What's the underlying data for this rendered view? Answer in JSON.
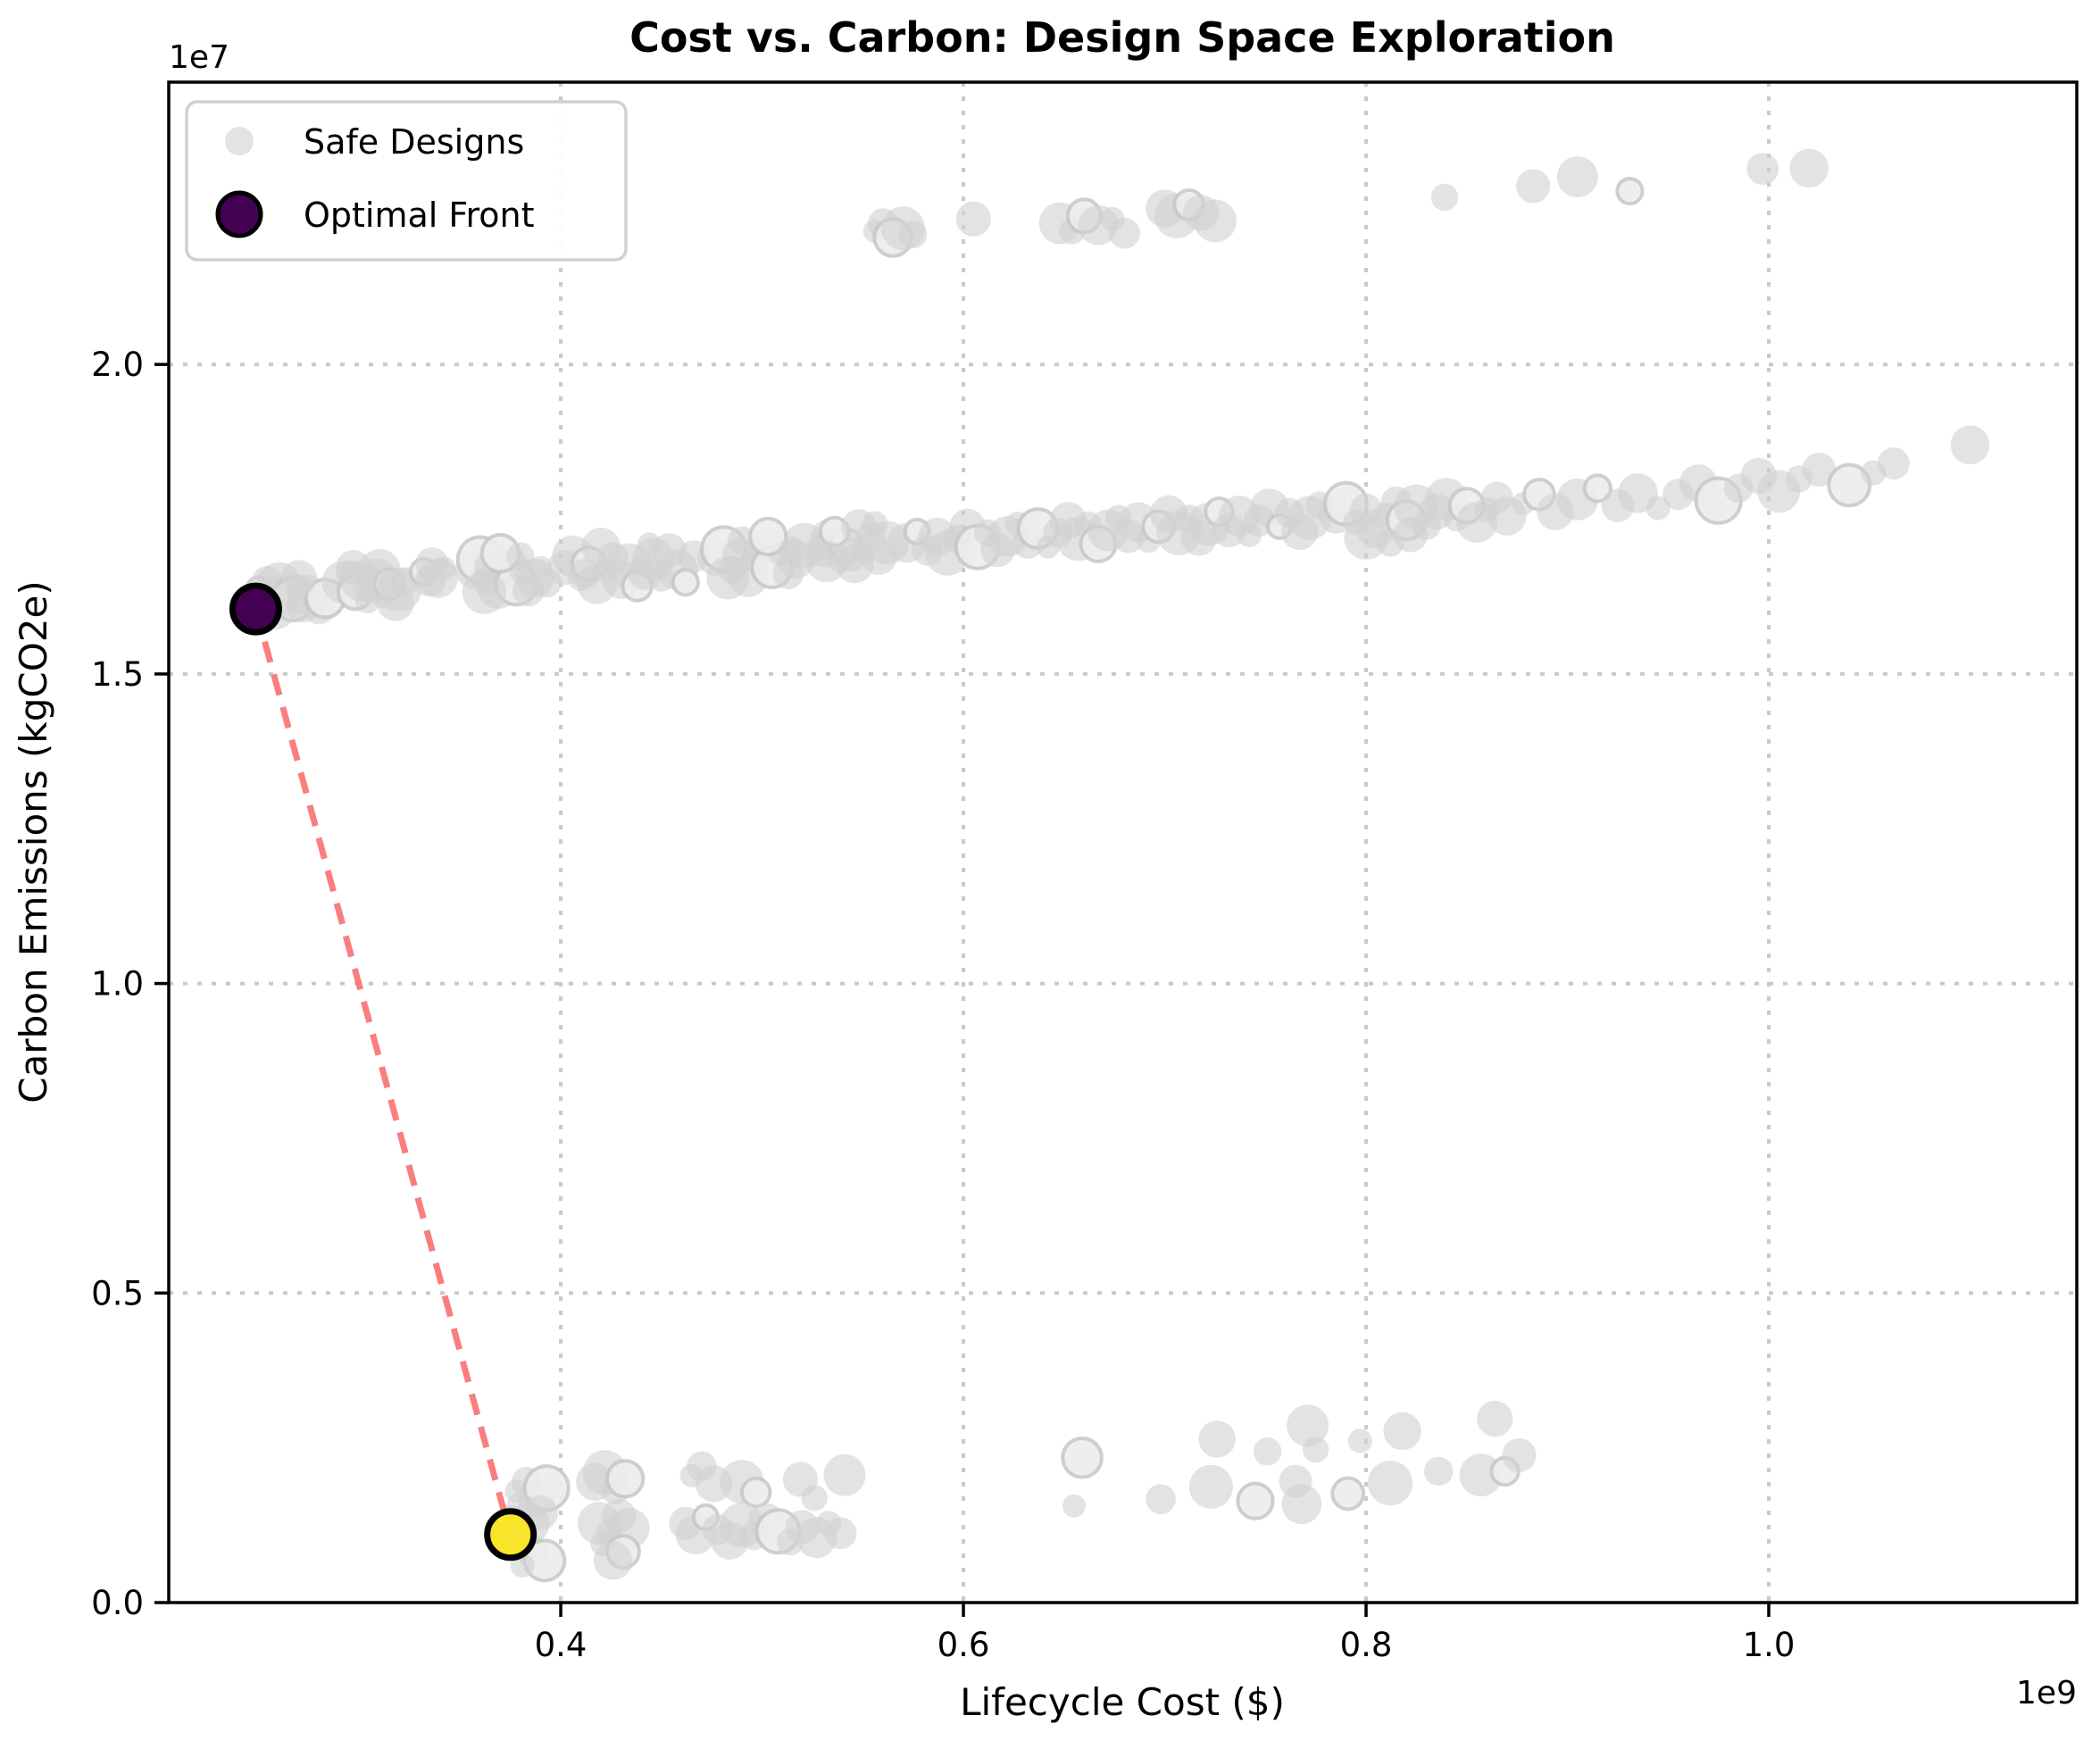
{
  "chart_data": {
    "type": "scatter",
    "title": "Cost vs. Carbon: Design Space Exploration",
    "xlabel": "Lifecycle Cost ($)",
    "ylabel": "Carbon Emissions (kgCO2e)",
    "x_offset_text": "1e9",
    "y_offset_text": "1e7",
    "x_units": "1e9 dollars",
    "y_units": "1e7 kgCO2e",
    "xlim": [
      0.2053,
      1.153
    ],
    "ylim": [
      0,
      2.456
    ],
    "x_ticks": [
      0.4,
      0.6,
      0.8,
      1.0
    ],
    "y_ticks": [
      0.0,
      0.5,
      1.0,
      1.5,
      2.0
    ],
    "grid": true,
    "grid_style": "dotted",
    "colors": {
      "safe": "#d2d2d2",
      "safe_ring": "#ececec",
      "optimal_low": "#440154",
      "optimal_high": "#f8e52b",
      "connector": "#fa7070",
      "grid": "#c9c9c9",
      "spine": "#000000"
    },
    "legend": {
      "position": "upper left",
      "entries": [
        {
          "label": "Safe Designs",
          "color": "#d9d9d9"
        },
        {
          "label": "Optimal Front",
          "color": "#440154"
        }
      ]
    },
    "series": [
      {
        "name": "Safe Designs",
        "points": [
          [
            0.25,
            1.638
          ],
          [
            0.254,
            1.65
          ],
          [
            0.257,
            1.628
          ],
          [
            0.26,
            1.645
          ],
          [
            0.262,
            1.615
          ],
          [
            0.264,
            1.632
          ],
          [
            0.267,
            1.62
          ],
          [
            0.27,
            1.64
          ],
          [
            0.272,
            1.61
          ],
          [
            0.274,
            1.628
          ],
          [
            0.277,
            1.618
          ],
          [
            0.28,
            1.605
          ],
          [
            0.283,
            1.622
          ],
          [
            0.258,
            1.608
          ],
          [
            0.252,
            1.618
          ],
          [
            0.27,
            1.655
          ],
          [
            0.292,
            1.648
          ],
          [
            0.295,
            1.662
          ],
          [
            0.298,
            1.632
          ],
          [
            0.301,
            1.65
          ],
          [
            0.304,
            1.618
          ],
          [
            0.306,
            1.64
          ],
          [
            0.309,
            1.655
          ],
          [
            0.312,
            1.625
          ],
          [
            0.315,
            1.645
          ],
          [
            0.318,
            1.615
          ],
          [
            0.32,
            1.636
          ],
          [
            0.323,
            1.65
          ],
          [
            0.297,
            1.672
          ],
          [
            0.31,
            1.668
          ],
          [
            0.332,
            1.665
          ],
          [
            0.336,
            1.678
          ],
          [
            0.339,
            1.655
          ],
          [
            0.342,
            1.67
          ],
          [
            0.335,
            1.65
          ],
          [
            0.357,
            1.668
          ],
          [
            0.36,
            1.685
          ],
          [
            0.363,
            1.65
          ],
          [
            0.366,
            1.672
          ],
          [
            0.369,
            1.64
          ],
          [
            0.372,
            1.66
          ],
          [
            0.375,
            1.678
          ],
          [
            0.378,
            1.645
          ],
          [
            0.381,
            1.665
          ],
          [
            0.384,
            1.635
          ],
          [
            0.387,
            1.655
          ],
          [
            0.39,
            1.672
          ],
          [
            0.393,
            1.648
          ],
          [
            0.37,
            1.695
          ],
          [
            0.362,
            1.632
          ],
          [
            0.38,
            1.69
          ],
          [
            0.402,
            1.672
          ],
          [
            0.406,
            1.69
          ],
          [
            0.41,
            1.655
          ],
          [
            0.414,
            1.678
          ],
          [
            0.418,
            1.645
          ],
          [
            0.422,
            1.668
          ],
          [
            0.426,
            1.688
          ],
          [
            0.43,
            1.652
          ],
          [
            0.434,
            1.675
          ],
          [
            0.438,
            1.642
          ],
          [
            0.442,
            1.665
          ],
          [
            0.446,
            1.685
          ],
          [
            0.45,
            1.655
          ],
          [
            0.454,
            1.7
          ],
          [
            0.458,
            1.668
          ],
          [
            0.462,
            1.648
          ],
          [
            0.466,
            1.69
          ],
          [
            0.42,
            1.705
          ],
          [
            0.444,
            1.71
          ],
          [
            0.412,
            1.662
          ],
          [
            0.477,
            1.688
          ],
          [
            0.481,
            1.702
          ],
          [
            0.485,
            1.668
          ],
          [
            0.489,
            1.692
          ],
          [
            0.493,
            1.658
          ],
          [
            0.497,
            1.682
          ],
          [
            0.501,
            1.705
          ],
          [
            0.505,
            1.672
          ],
          [
            0.509,
            1.695
          ],
          [
            0.513,
            1.662
          ],
          [
            0.517,
            1.685
          ],
          [
            0.521,
            1.708
          ],
          [
            0.49,
            1.715
          ],
          [
            0.503,
            1.722
          ],
          [
            0.483,
            1.655
          ],
          [
            0.515,
            1.7
          ],
          [
            0.53,
            1.7
          ],
          [
            0.534,
            1.718
          ],
          [
            0.538,
            1.685
          ],
          [
            0.542,
            1.708
          ],
          [
            0.546,
            1.678
          ],
          [
            0.55,
            1.698
          ],
          [
            0.554,
            1.722
          ],
          [
            0.558,
            1.69
          ],
          [
            0.562,
            1.712
          ],
          [
            0.536,
            1.73
          ],
          [
            0.548,
            1.738
          ],
          [
            0.532,
            1.682
          ],
          [
            0.556,
            1.742
          ],
          [
            0.544,
            1.692
          ],
          [
            0.572,
            1.712
          ],
          [
            0.577,
            1.73
          ],
          [
            0.582,
            1.7
          ],
          [
            0.587,
            1.722
          ],
          [
            0.592,
            1.695
          ],
          [
            0.597,
            1.718
          ],
          [
            0.602,
            1.738
          ],
          [
            0.607,
            1.705
          ],
          [
            0.612,
            1.728
          ],
          [
            0.617,
            1.7
          ],
          [
            0.622,
            1.722
          ],
          [
            0.627,
            1.742
          ],
          [
            0.632,
            1.712
          ],
          [
            0.637,
            1.735
          ],
          [
            0.642,
            1.705
          ],
          [
            0.647,
            1.728
          ],
          [
            0.652,
            1.748
          ],
          [
            0.657,
            1.718
          ],
          [
            0.662,
            1.74
          ],
          [
            0.667,
            1.71
          ],
          [
            0.672,
            1.732
          ],
          [
            0.677,
            1.752
          ],
          [
            0.682,
            1.722
          ],
          [
            0.687,
            1.745
          ],
          [
            0.692,
            1.715
          ],
          [
            0.697,
            1.738
          ],
          [
            0.702,
            1.758
          ],
          [
            0.707,
            1.728
          ],
          [
            0.712,
            1.75
          ],
          [
            0.717,
            1.72
          ],
          [
            0.722,
            1.742
          ],
          [
            0.727,
            1.762
          ],
          [
            0.732,
            1.732
          ],
          [
            0.737,
            1.755
          ],
          [
            0.742,
            1.725
          ],
          [
            0.747,
            1.748
          ],
          [
            0.752,
            1.768
          ],
          [
            0.757,
            1.738
          ],
          [
            0.762,
            1.76
          ],
          [
            0.767,
            1.73
          ],
          [
            0.772,
            1.752
          ],
          [
            0.777,
            1.772
          ],
          [
            0.785,
            1.755
          ],
          [
            0.79,
            1.775
          ],
          [
            0.795,
            1.745
          ],
          [
            0.8,
            1.765
          ],
          [
            0.805,
            1.735
          ],
          [
            0.81,
            1.758
          ],
          [
            0.815,
            1.778
          ],
          [
            0.82,
            1.748
          ],
          [
            0.825,
            1.77
          ],
          [
            0.83,
            1.74
          ],
          [
            0.835,
            1.762
          ],
          [
            0.84,
            1.782
          ],
          [
            0.845,
            1.752
          ],
          [
            0.85,
            1.772
          ],
          [
            0.855,
            1.745
          ],
          [
            0.86,
            1.765
          ],
          [
            0.865,
            1.785
          ],
          [
            0.87,
            1.755
          ],
          [
            0.878,
            1.775
          ],
          [
            0.886,
            1.79
          ],
          [
            0.894,
            1.762
          ],
          [
            0.8,
            1.72
          ],
          [
            0.812,
            1.712
          ],
          [
            0.822,
            1.725
          ],
          [
            0.905,
            1.782
          ],
          [
            0.915,
            1.8
          ],
          [
            0.925,
            1.772
          ],
          [
            0.935,
            1.792
          ],
          [
            0.945,
            1.768
          ],
          [
            0.955,
            1.79
          ],
          [
            0.965,
            1.808
          ],
          [
            0.975,
            1.78
          ],
          [
            0.985,
            1.8
          ],
          [
            0.995,
            1.82
          ],
          [
            1.005,
            1.795
          ],
          [
            1.015,
            1.815
          ],
          [
            1.025,
            1.83
          ],
          [
            1.04,
            1.805
          ],
          [
            1.052,
            1.825
          ],
          [
            1.062,
            1.84
          ],
          [
            1.1,
            1.87
          ],
          [
            0.556,
            2.215
          ],
          [
            0.56,
            2.228
          ],
          [
            0.565,
            2.205
          ],
          [
            0.57,
            2.22
          ],
          [
            0.575,
            2.21
          ],
          [
            0.605,
            2.235
          ],
          [
            0.648,
            2.228
          ],
          [
            0.654,
            2.215
          ],
          [
            0.66,
            2.24
          ],
          [
            0.667,
            2.225
          ],
          [
            0.674,
            2.235
          ],
          [
            0.68,
            2.212
          ],
          [
            0.7,
            2.252
          ],
          [
            0.706,
            2.24
          ],
          [
            0.712,
            2.258
          ],
          [
            0.718,
            2.245
          ],
          [
            0.725,
            2.232
          ],
          [
            0.839,
            2.27
          ],
          [
            0.883,
            2.288
          ],
          [
            0.905,
            2.303
          ],
          [
            0.931,
            2.28
          ],
          [
            0.997,
            2.316
          ],
          [
            1.02,
            2.317
          ],
          [
            0.378,
            0.18
          ],
          [
            0.383,
            0.195
          ],
          [
            0.388,
            0.168
          ],
          [
            0.393,
            0.185
          ],
          [
            0.38,
            0.155
          ],
          [
            0.39,
            0.145
          ],
          [
            0.384,
            0.128
          ],
          [
            0.378,
            0.105
          ],
          [
            0.386,
            0.082
          ],
          [
            0.392,
            0.068
          ],
          [
            0.381,
            0.06
          ],
          [
            0.376,
            0.132
          ],
          [
            0.417,
            0.195
          ],
          [
            0.422,
            0.21
          ],
          [
            0.427,
            0.182
          ],
          [
            0.432,
            0.2
          ],
          [
            0.419,
            0.128
          ],
          [
            0.424,
            0.112
          ],
          [
            0.429,
            0.14
          ],
          [
            0.434,
            0.12
          ],
          [
            0.421,
            0.095
          ],
          [
            0.431,
            0.082
          ],
          [
            0.426,
            0.068
          ],
          [
            0.465,
            0.205
          ],
          [
            0.47,
            0.22
          ],
          [
            0.476,
            0.192
          ],
          [
            0.49,
            0.195
          ],
          [
            0.497,
            0.178
          ],
          [
            0.519,
            0.199
          ],
          [
            0.541,
            0.206
          ],
          [
            0.526,
            0.169
          ],
          [
            0.462,
            0.128
          ],
          [
            0.467,
            0.11
          ],
          [
            0.472,
            0.138
          ],
          [
            0.478,
            0.118
          ],
          [
            0.484,
            0.1
          ],
          [
            0.49,
            0.125
          ],
          [
            0.496,
            0.108
          ],
          [
            0.502,
            0.132
          ],
          [
            0.508,
            0.115
          ],
          [
            0.514,
            0.098
          ],
          [
            0.52,
            0.122
          ],
          [
            0.527,
            0.105
          ],
          [
            0.533,
            0.128
          ],
          [
            0.539,
            0.112
          ],
          [
            0.659,
            0.234
          ],
          [
            0.655,
            0.156
          ],
          [
            0.698,
            0.167
          ],
          [
            0.726,
            0.264
          ],
          [
            0.723,
            0.187
          ],
          [
            0.751,
            0.244
          ],
          [
            0.745,
            0.164
          ],
          [
            0.771,
            0.286
          ],
          [
            0.775,
            0.247
          ],
          [
            0.765,
            0.196
          ],
          [
            0.768,
            0.159
          ],
          [
            0.797,
            0.261
          ],
          [
            0.791,
            0.176
          ],
          [
            0.818,
            0.277
          ],
          [
            0.812,
            0.193
          ],
          [
            0.836,
            0.212
          ],
          [
            0.864,
            0.297
          ],
          [
            0.857,
            0.206
          ],
          [
            0.869,
            0.212
          ],
          [
            0.876,
            0.238
          ]
        ]
      },
      {
        "name": "Optimal Front",
        "points": [
          {
            "x": 0.2485,
            "y": 1.605,
            "color": "#440154"
          },
          {
            "x": 0.375,
            "y": 0.11,
            "color": "#f8e52b"
          }
        ]
      }
    ],
    "connector": {
      "between": "Optimal Front points",
      "color": "#fa7070",
      "style": "dashed"
    }
  }
}
